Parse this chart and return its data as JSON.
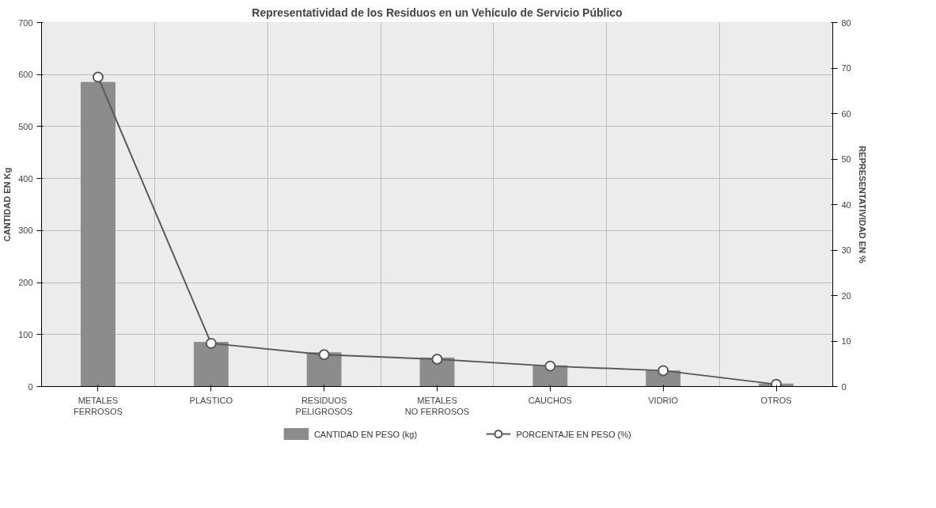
{
  "chart_data": {
    "type": "bar",
    "title": "Representatividad de los Residuos en un Vehículo de Servicio Público",
    "ylabel": "CANTIDAD EN Kg",
    "y2label": "REPRESENTATIVIDAD EN %",
    "categories": [
      "METALES FERROSOS",
      "PLASTICO",
      "RESIDUOS PELIGROSOS",
      "METALES NO FERROSOS",
      "CAUCHOS",
      "VIDRIO",
      "OTROS"
    ],
    "series": [
      {
        "name": "CANTIDAD EN PESO (kg)",
        "color": "#8c8c8c",
        "values": [
          585,
          85,
          65,
          55,
          40,
          30,
          5
        ]
      },
      {
        "name": "PORCENTAJE EN PESO (%)",
        "type": "line",
        "axis": "y2",
        "color": "#595959",
        "marker": "circle",
        "values": [
          68,
          9.5,
          7,
          6,
          4.5,
          3.5,
          0.5
        ]
      }
    ],
    "ylim": [
      0,
      700
    ],
    "yticks": [
      0,
      100,
      200,
      300,
      400,
      500,
      600,
      700
    ],
    "y2lim": [
      0,
      80
    ],
    "y2ticks": [
      0,
      10,
      20,
      30,
      40,
      50,
      60,
      70,
      80
    ],
    "grid": true,
    "legend": "bottom"
  }
}
